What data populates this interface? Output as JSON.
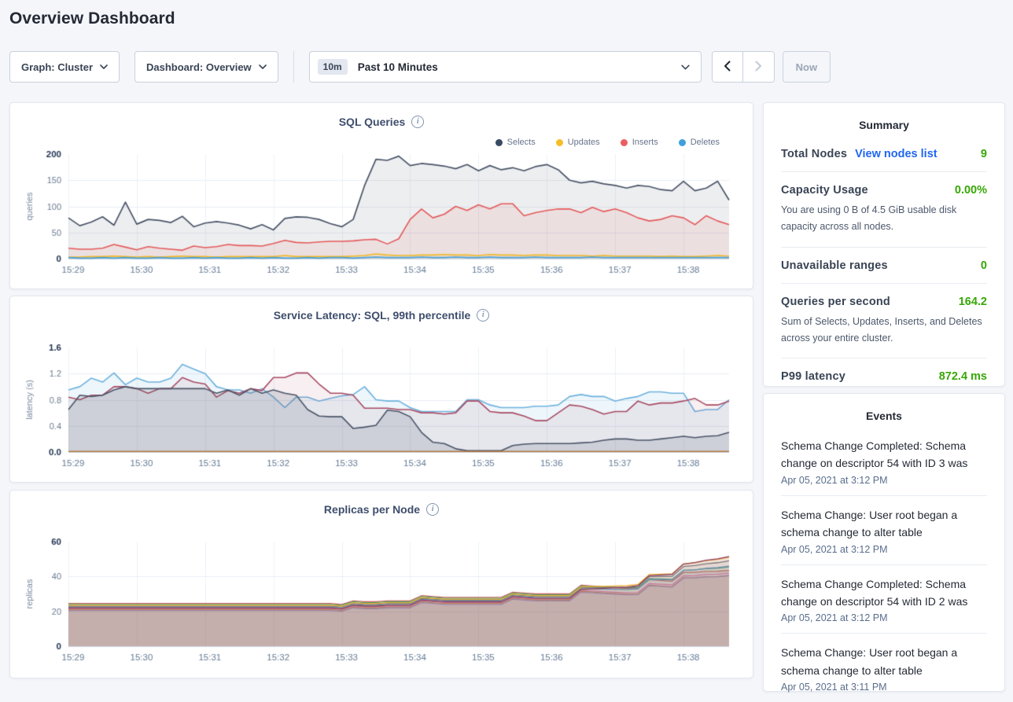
{
  "page": {
    "title": "Overview Dashboard"
  },
  "toolbar": {
    "graph_selector_label": "Graph: Cluster",
    "dashboard_selector_label": "Dashboard: Overview",
    "time_window_badge": "10m",
    "time_window_label": "Past 10 Minutes",
    "now_button_label": "Now"
  },
  "ui_colors": {
    "value_green": "#37a806",
    "link_blue": "#2066f2"
  },
  "summary": {
    "title": "Summary",
    "rows": [
      {
        "label": "Total Nodes",
        "link": "View nodes list",
        "value": "9",
        "description": ""
      },
      {
        "label": "Capacity Usage",
        "link": "",
        "value": "0.00%",
        "description": "You are using 0 B of 4.5 GiB usable disk capacity across all nodes."
      },
      {
        "label": "Unavailable ranges",
        "link": "",
        "value": "0",
        "description": ""
      },
      {
        "label": "Queries per second",
        "link": "",
        "value": "164.2",
        "description": "Sum of Selects, Updates, Inserts, and Deletes across your entire cluster."
      },
      {
        "label": "P99 latency",
        "link": "",
        "value": "872.4 ms",
        "description": ""
      }
    ]
  },
  "events": {
    "title": "Events",
    "items": [
      {
        "text": "Schema Change Completed: Schema change on descriptor 54 with ID 3 was",
        "timestamp": "Apr 05, 2021 at 3:12 PM"
      },
      {
        "text": "Schema Change: User root began a schema change to alter table",
        "timestamp": "Apr 05, 2021 at 3:12 PM"
      },
      {
        "text": "Schema Change Completed: Schema change on descriptor 54 with ID 2 was",
        "timestamp": "Apr 05, 2021 at 3:12 PM"
      },
      {
        "text": "Schema Change: User root began a schema change to alter table",
        "timestamp": "Apr 05, 2021 at 3:11 PM"
      }
    ]
  },
  "chart_data": [
    {
      "type": "area",
      "title": "SQL Queries",
      "ylabel": "queries",
      "y_max": 200,
      "y_ticks": [
        "0",
        "50",
        "100",
        "150",
        "200"
      ],
      "x_labels": [
        "15:29",
        "15:30",
        "15:31",
        "15:32",
        "15:33",
        "15:34",
        "15:35",
        "15:36",
        "15:37",
        "15:38"
      ],
      "legend": [
        {
          "label": "Selects",
          "color": "#394a63"
        },
        {
          "label": "Updates",
          "color": "#f5bd2a"
        },
        {
          "label": "Inserts",
          "color": "#ea5e60"
        },
        {
          "label": "Deletes",
          "color": "#3fa0dc"
        }
      ],
      "series": [
        {
          "name": "Selects",
          "color": "#4a5468",
          "width": 1.7,
          "fill_alpha": 0.1,
          "values": [
            78,
            63,
            70,
            80,
            64,
            108,
            66,
            75,
            73,
            69,
            81,
            61,
            68,
            71,
            68,
            64,
            57,
            65,
            55,
            77,
            80,
            79,
            75,
            67,
            61,
            75,
            140,
            190,
            188,
            196,
            178,
            182,
            180,
            177,
            172,
            180,
            168,
            178,
            170,
            174,
            168,
            176,
            180,
            170,
            150,
            145,
            148,
            143,
            140,
            135,
            140,
            138,
            132,
            130,
            148,
            130,
            135,
            148,
            112
          ]
        },
        {
          "name": "Inserts",
          "color": "#e45a5a",
          "width": 1.6,
          "fill_alpha": 0.1,
          "values": [
            20,
            18,
            18,
            20,
            27,
            22,
            17,
            23,
            20,
            18,
            16,
            24,
            21,
            23,
            27,
            25,
            25,
            24,
            29,
            35,
            31,
            30,
            32,
            33,
            33,
            34,
            36,
            37,
            28,
            38,
            75,
            95,
            78,
            85,
            100,
            92,
            103,
            95,
            105,
            105,
            82,
            88,
            92,
            95,
            95,
            88,
            98,
            90,
            95,
            88,
            78,
            72,
            75,
            82,
            78,
            65,
            82,
            72,
            65
          ]
        },
        {
          "name": "Updates",
          "color": "#f0b828",
          "width": 1.6,
          "fill_alpha": 0.1,
          "values": [
            3,
            3,
            4,
            4,
            5,
            4,
            3,
            4,
            3,
            4,
            5,
            4,
            4,
            3,
            4,
            4,
            4,
            4,
            4,
            6,
            4,
            4,
            4,
            4,
            4,
            5,
            6,
            9,
            7,
            6,
            6,
            7,
            7,
            8,
            7,
            7,
            6,
            8,
            7,
            7,
            6,
            7,
            7,
            6,
            6,
            6,
            5,
            6,
            5,
            5,
            5,
            5,
            4,
            5,
            4,
            4,
            5,
            6,
            5
          ]
        },
        {
          "name": "Deletes",
          "color": "#459fd8",
          "width": 1.6,
          "fill_alpha": 0.1,
          "values": [
            2,
            1,
            1,
            2,
            1,
            2,
            1,
            1,
            2,
            1,
            1,
            2,
            1,
            2,
            1,
            1,
            2,
            1,
            2,
            1,
            1,
            2,
            1,
            2,
            2,
            1,
            2,
            3,
            2,
            2,
            2,
            3,
            2,
            2,
            3,
            2,
            2,
            3,
            2,
            2,
            2,
            3,
            2,
            2,
            2,
            2,
            3,
            2,
            2,
            2,
            2,
            2,
            2,
            2,
            2,
            2,
            2,
            2,
            2
          ]
        }
      ]
    },
    {
      "type": "area",
      "title": "Service Latency: SQL, 99th percentile",
      "ylabel": "latency (s)",
      "y_max": 1.6,
      "y_ticks": [
        "0.0",
        "0.4",
        "0.8",
        "1.2",
        "1.6"
      ],
      "x_labels": [
        "15:29",
        "15:30",
        "15:31",
        "15:32",
        "15:33",
        "15:34",
        "15:35",
        "15:36",
        "15:37",
        "15:38"
      ],
      "legend": [],
      "series": [
        {
          "name": "p99-blue",
          "color": "#6cb1dd",
          "width": 1.6,
          "fill_alpha": 0.12,
          "values": [
            0.95,
            1.0,
            1.13,
            1.07,
            1.21,
            1.03,
            1.13,
            1.07,
            1.07,
            1.13,
            1.34,
            1.27,
            1.2,
            1.0,
            0.95,
            0.95,
            0.9,
            0.97,
            0.84,
            0.68,
            0.84,
            0.84,
            0.78,
            0.82,
            0.86,
            0.88,
            1.0,
            0.8,
            0.78,
            0.78,
            0.68,
            0.62,
            0.62,
            0.62,
            0.62,
            0.8,
            0.8,
            0.72,
            0.68,
            0.68,
            0.68,
            0.7,
            0.7,
            0.72,
            0.85,
            0.88,
            0.85,
            0.85,
            0.78,
            0.82,
            0.85,
            0.92,
            0.92,
            0.9,
            0.9,
            0.62,
            0.65,
            0.65,
            0.8
          ]
        },
        {
          "name": "p99-red",
          "color": "#a84a63",
          "width": 1.6,
          "fill_alpha": 0.09,
          "values": [
            0.84,
            0.8,
            0.87,
            0.87,
            1.0,
            1.0,
            0.97,
            0.9,
            0.97,
            0.97,
            1.14,
            1.07,
            1.04,
            0.84,
            0.94,
            0.9,
            0.97,
            0.94,
            1.14,
            1.14,
            1.21,
            1.21,
            1.04,
            0.9,
            0.9,
            0.87,
            0.67,
            0.67,
            0.67,
            0.65,
            0.65,
            0.6,
            0.6,
            0.58,
            0.6,
            0.78,
            0.78,
            0.62,
            0.6,
            0.6,
            0.55,
            0.48,
            0.48,
            0.6,
            0.72,
            0.7,
            0.65,
            0.58,
            0.62,
            0.62,
            0.78,
            0.72,
            0.75,
            0.75,
            0.78,
            0.82,
            0.72,
            0.72,
            0.78
          ]
        },
        {
          "name": "p99-navy",
          "color": "#4a5468",
          "width": 1.6,
          "fill_alpha": 0.16,
          "values": [
            0.65,
            0.87,
            0.85,
            0.87,
            0.95,
            1.0,
            0.97,
            0.97,
            0.97,
            0.97,
            0.97,
            0.97,
            0.97,
            0.9,
            0.95,
            0.87,
            0.97,
            0.9,
            0.95,
            0.9,
            0.87,
            0.65,
            0.55,
            0.54,
            0.54,
            0.36,
            0.38,
            0.41,
            0.64,
            0.62,
            0.54,
            0.3,
            0.15,
            0.13,
            0.05,
            0.02,
            0.02,
            0.02,
            0.02,
            0.1,
            0.12,
            0.13,
            0.13,
            0.13,
            0.13,
            0.14,
            0.15,
            0.18,
            0.2,
            0.2,
            0.18,
            0.18,
            0.2,
            0.22,
            0.24,
            0.22,
            0.24,
            0.25,
            0.3
          ]
        },
        {
          "name": "zero-baseline",
          "color": "#b5793f",
          "width": 1.5,
          "fill_alpha": 0,
          "values": [
            0.008,
            0.008,
            0.008,
            0.008,
            0.008,
            0.008,
            0.008,
            0.008,
            0.008,
            0.008,
            0.008,
            0.008,
            0.008,
            0.008,
            0.008,
            0.008,
            0.008,
            0.008,
            0.008,
            0.008,
            0.008,
            0.008,
            0.008,
            0.008,
            0.008,
            0.008,
            0.008,
            0.008,
            0.008,
            0.008,
            0.008,
            0.008,
            0.008,
            0.008,
            0.008,
            0.008,
            0.008,
            0.008,
            0.008,
            0.008,
            0.008,
            0.008,
            0.008,
            0.008,
            0.008,
            0.008,
            0.008,
            0.008,
            0.008,
            0.008,
            0.008,
            0.008,
            0.008,
            0.008,
            0.008,
            0.008,
            0.008,
            0.008,
            0.008
          ]
        }
      ]
    },
    {
      "type": "area-multinode",
      "title": "Replicas per Node",
      "ylabel": "replicas",
      "y_max": 60,
      "y_ticks": [
        "0",
        "20",
        "40",
        "60"
      ],
      "x_labels": [
        "15:29",
        "15:30",
        "15:31",
        "15:32",
        "15:33",
        "15:34",
        "15:35",
        "15:36",
        "15:37",
        "15:38"
      ],
      "legend": [],
      "base": [
        22.5,
        22.5,
        22.5,
        22.5,
        22.5,
        22.5,
        22.5,
        22.5,
        22.5,
        22.5,
        22.5,
        22.5,
        22.5,
        22.5,
        22.5,
        22.5,
        22.5,
        22.5,
        22.5,
        22.5,
        22.5,
        22.5,
        22.5,
        22.5,
        22,
        24,
        23.5,
        23.5,
        24,
        24,
        24,
        27,
        26.5,
        26,
        26,
        26,
        26,
        26,
        26,
        29,
        28.5,
        28,
        28,
        28,
        28,
        33,
        32.5,
        32,
        31.5,
        31,
        31,
        36,
        35.5,
        35,
        40,
        40,
        40.5,
        40.5,
        41
      ],
      "spread_start": 45,
      "nodes": [
        {
          "name": "node-1",
          "color": "#d05b5b",
          "offset": 2.0,
          "spread": 0.5
        },
        {
          "name": "node-2",
          "color": "#49a578",
          "offset": 1.5,
          "spread": 3
        },
        {
          "name": "node-3",
          "color": "#e077b8",
          "offset": -1.0,
          "spread": 2
        },
        {
          "name": "node-4",
          "color": "#d68a4e",
          "offset": -1.5,
          "spread": 1
        },
        {
          "name": "node-5",
          "color": "#9b8bc4",
          "offset": -2.0,
          "spread": 1.5
        },
        {
          "name": "node-6",
          "color": "#5e9bd0",
          "offset": 0.0,
          "spread": 5
        },
        {
          "name": "node-7",
          "color": "#6d7582",
          "offset": 0.5,
          "spread": 7.5
        },
        {
          "name": "node-8",
          "color": "#ecb22e",
          "offset": 1.0,
          "spread": 9
        },
        {
          "name": "node-9",
          "color": "#8f3e62",
          "offset": -0.5,
          "spread": 11
        }
      ]
    }
  ]
}
